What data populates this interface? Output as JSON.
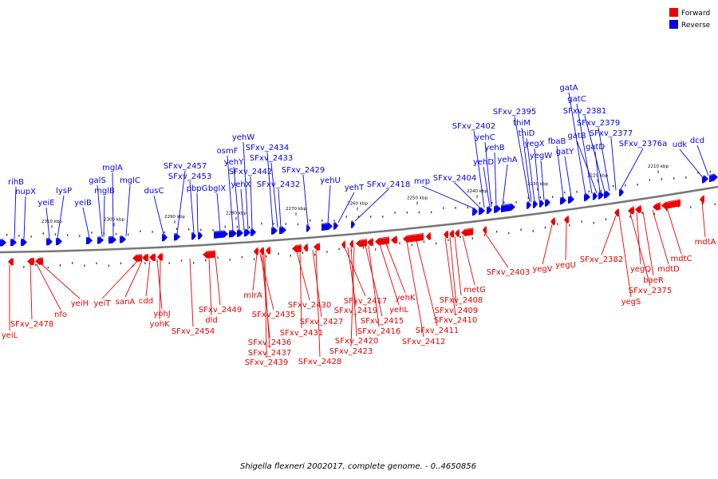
{
  "caption": "Shigella flexneri 2002017, complete genome. - 0..4650856",
  "colors": {
    "forward": "#ee0000",
    "reverse": "#0000ee",
    "backbone": "#777777"
  },
  "legend": [
    {
      "label": "Forward",
      "color": "#ee0000"
    },
    {
      "label": "Reverse",
      "color": "#0000ee"
    }
  ],
  "ticks": [
    "2310 kbp",
    "2300 kbp",
    "2290 kbp",
    "2280 kbp",
    "2270 kbp",
    "2260 kbp",
    "2250 kbp",
    "2240 kbp",
    "2230 kbp",
    "2220 kbp",
    "2210 kbp"
  ],
  "reverse_labels": [
    "rihB",
    "nupX",
    "yeiE",
    "lysP",
    "yeiB",
    "galS",
    "mglB",
    "mglA",
    "mglC",
    "dusC",
    "SFxv_2457",
    "SFxv_2453",
    "pbpG",
    "bglX",
    "osmF",
    "yehY",
    "yehX",
    "SFxv_2442",
    "yehW",
    "SFxv_2434",
    "SFxv_2433",
    "SFxv_2432",
    "SFxv_2429",
    "yehU",
    "yehT",
    "SFxv_2418",
    "mrp",
    "SFxv_2404",
    "SFxv_2402",
    "yehD",
    "yehC",
    "yehB",
    "yehA",
    "SFxv_2395",
    "thiM",
    "thiD",
    "yegX",
    "yegW",
    "fbaB",
    "gatY",
    "gatA",
    "gatC",
    "gatB",
    "gatD",
    "SFxv_2381",
    "SFxv_2379",
    "SFxv_2377",
    "SFxv_2376a",
    "udk",
    "dcd"
  ],
  "forward_labels": [
    "yeiL",
    "SFxv_2478",
    "nfo",
    "yeiH",
    "yeiT",
    "sanA",
    "cdd",
    "yohJ",
    "yohK",
    "SFxv_2454",
    "dld",
    "SFxv_2449",
    "mlrA",
    "SFxv_2435",
    "SFxv_2436",
    "SFxv_2437",
    "SFxv_2439",
    "SFxv_2430",
    "SFxv_2431",
    "SFxv_2427",
    "SFxv_2428",
    "SFxv_2417",
    "SFxv_2419",
    "SFxv_2420",
    "SFxv_2423",
    "yehL",
    "SFxv_2415",
    "SFxv_2416",
    "yehK",
    "SFxv_2412",
    "SFxv_2411",
    "SFxv_2410",
    "SFxv_2409",
    "SFxv_2408",
    "metG",
    "SFxv_2403",
    "yegV",
    "yegU",
    "SFxv_2382",
    "yegS",
    "SFxv_2375",
    "yegQ",
    "baeR",
    "mdtD",
    "mdtC",
    "mdtA"
  ]
}
